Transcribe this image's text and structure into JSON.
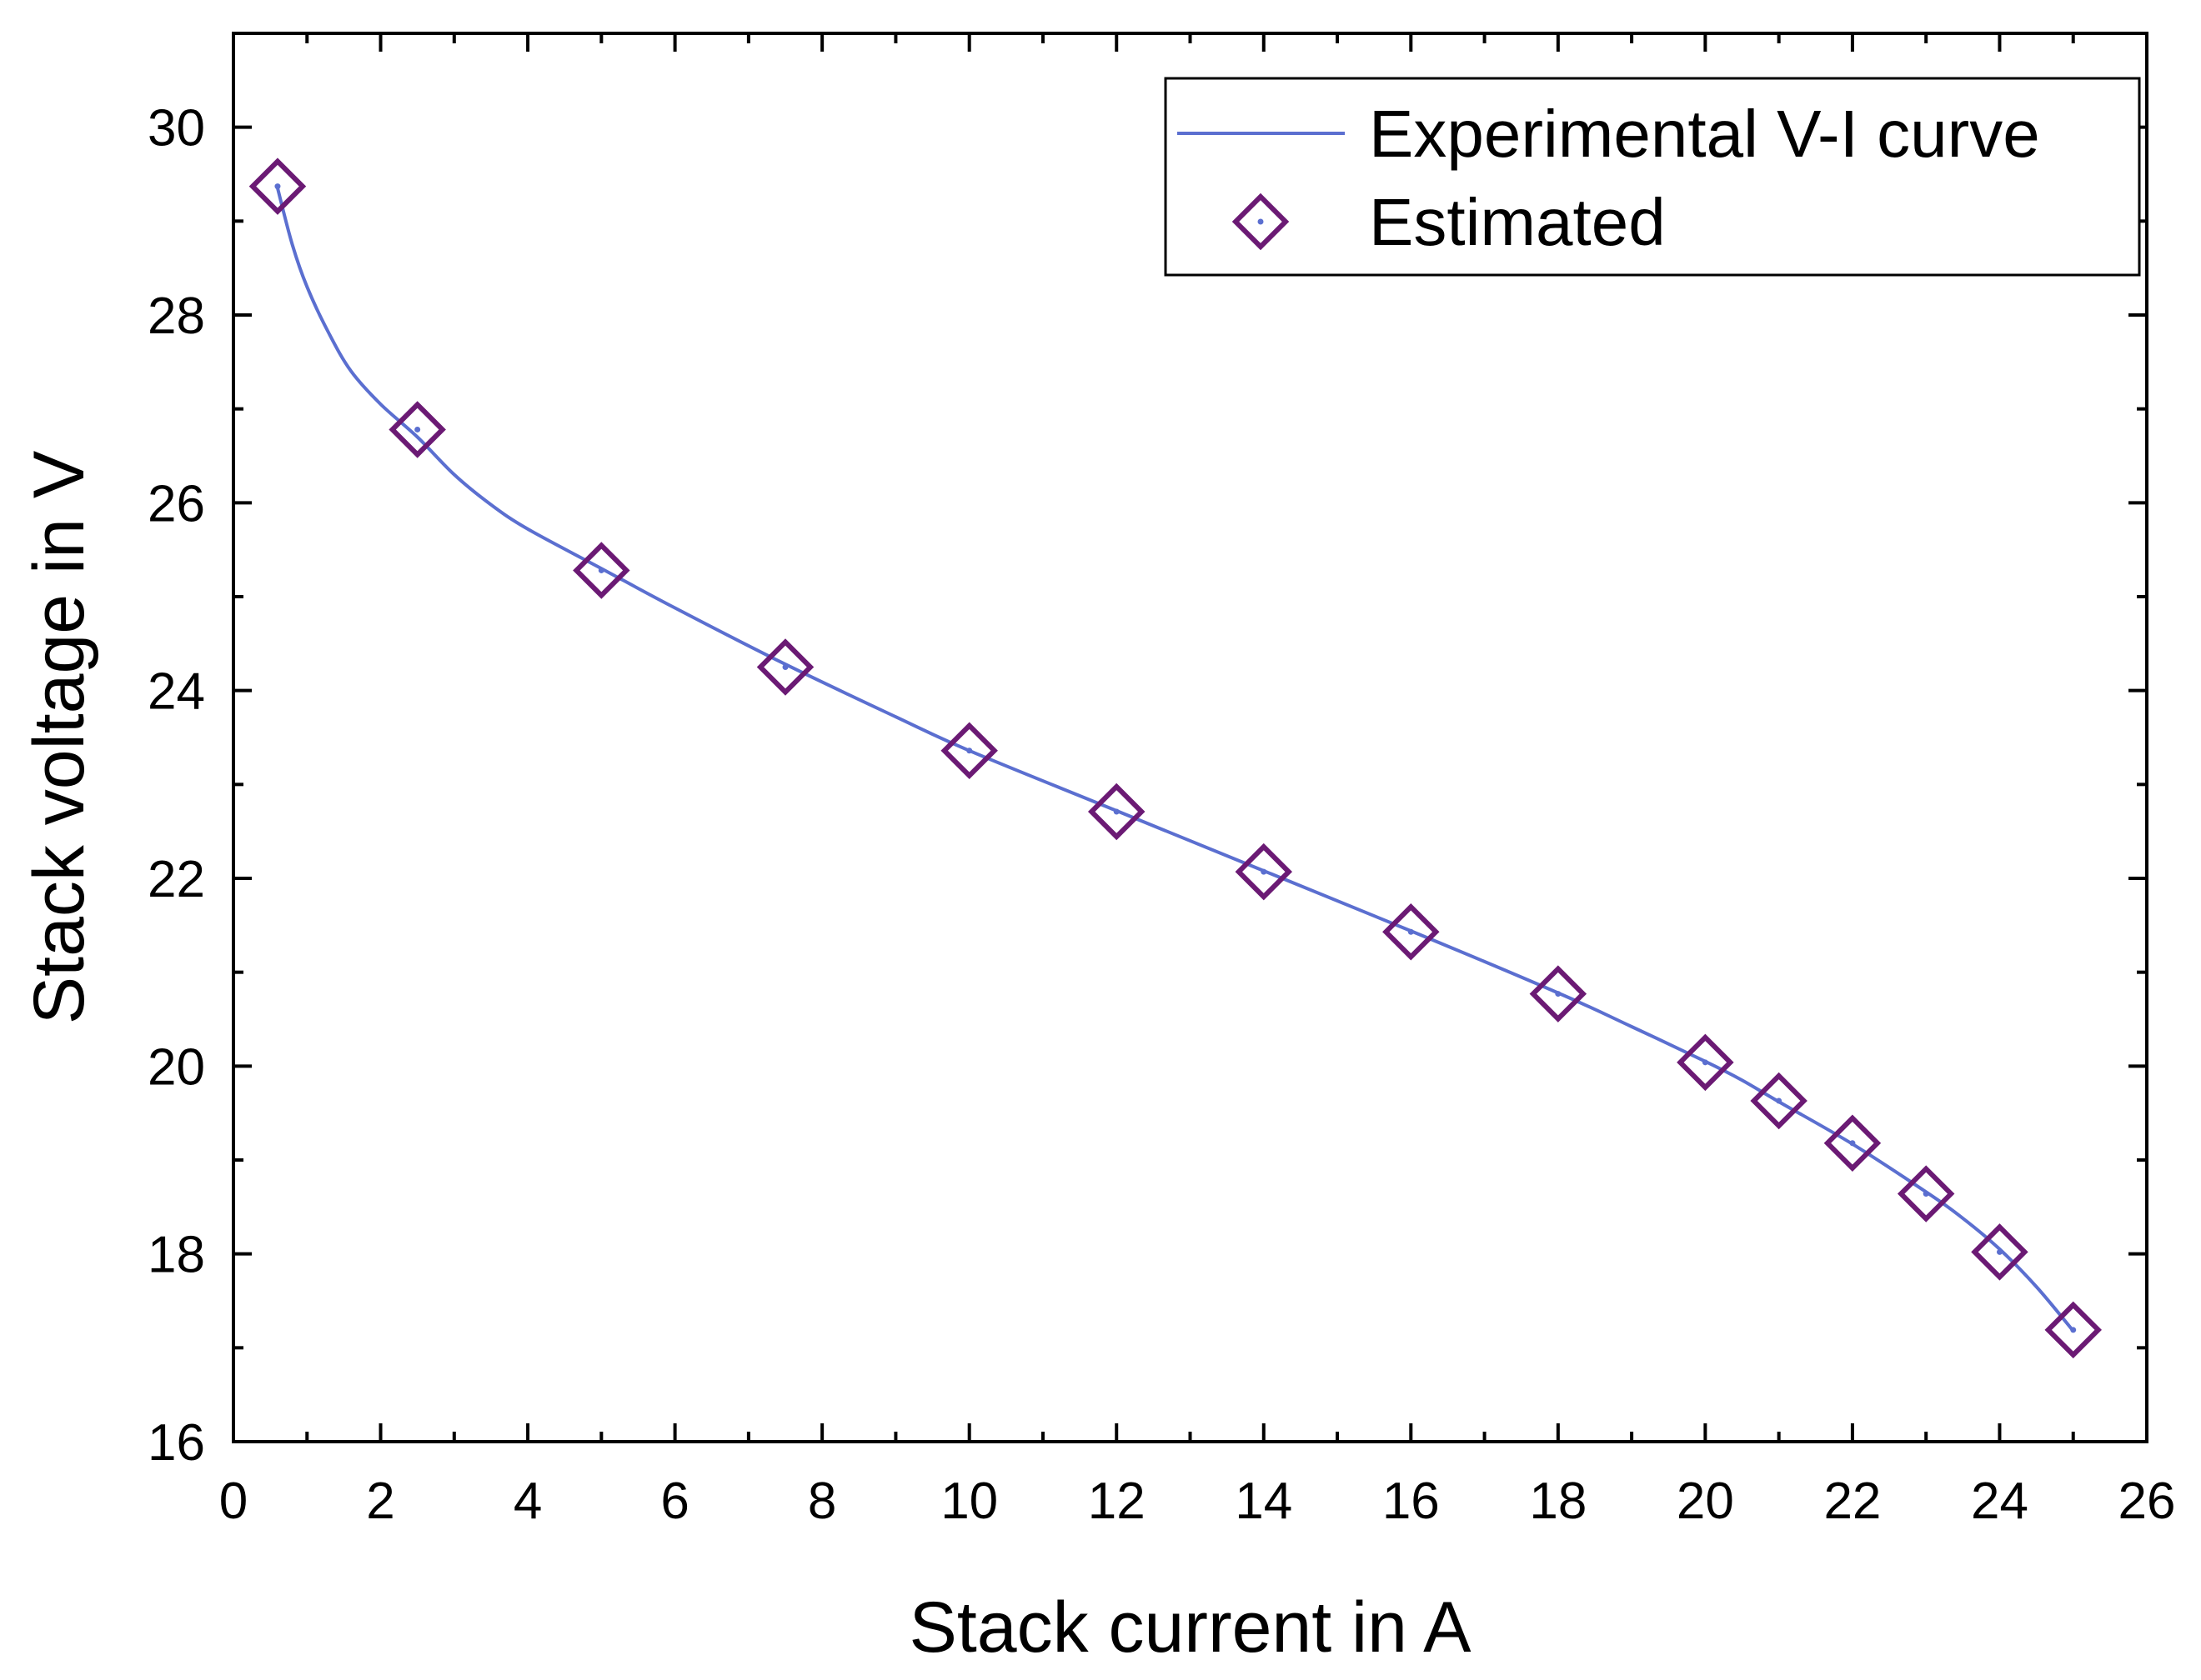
{
  "chart_data": {
    "type": "line",
    "title": "",
    "xlabel": "Stack current in A",
    "ylabel": "Stack voltage in V",
    "xlim": [
      0,
      26
    ],
    "ylim": [
      16,
      31
    ],
    "xticks": [
      0,
      2,
      4,
      6,
      8,
      10,
      12,
      14,
      16,
      18,
      20,
      22,
      24,
      26
    ],
    "yticks": [
      16,
      18,
      20,
      22,
      24,
      26,
      28,
      30
    ],
    "grid": false,
    "legend_position": "top-right",
    "colors": {
      "line": "#5b6fd0",
      "marker": "#6b1a74",
      "axis": "#000000"
    },
    "series": [
      {
        "name": "Experimental V-I curve",
        "kind": "line",
        "x": [
          0.6,
          0.8,
          1.0,
          1.3,
          1.6,
          2.0,
          2.5,
          3.0,
          3.5,
          4.0,
          5.0,
          6.0,
          7.5,
          9.0,
          10.0,
          12.0,
          14.0,
          16.0,
          18.0,
          19.0,
          20.0,
          20.5,
          21.0,
          22.0,
          23.0,
          23.5,
          24.0,
          24.5,
          25.0
        ],
        "y": [
          29.35,
          28.75,
          28.3,
          27.8,
          27.4,
          27.05,
          26.7,
          26.3,
          25.98,
          25.72,
          25.3,
          24.88,
          24.28,
          23.72,
          23.36,
          22.72,
          22.08,
          21.44,
          20.78,
          20.42,
          20.05,
          19.85,
          19.62,
          19.17,
          18.66,
          18.38,
          18.05,
          17.65,
          17.18
        ]
      },
      {
        "name": "Estimated",
        "kind": "scatter",
        "marker": "diamond",
        "x": [
          0.6,
          2.5,
          5.0,
          7.5,
          10.0,
          12.0,
          14.0,
          16.0,
          18.0,
          20.0,
          21.0,
          22.0,
          23.0,
          24.0,
          25.0
        ],
        "y": [
          29.37,
          26.78,
          25.28,
          24.25,
          23.36,
          22.71,
          22.07,
          21.43,
          20.77,
          20.04,
          19.63,
          19.18,
          18.64,
          18.02,
          17.19
        ]
      }
    ]
  }
}
